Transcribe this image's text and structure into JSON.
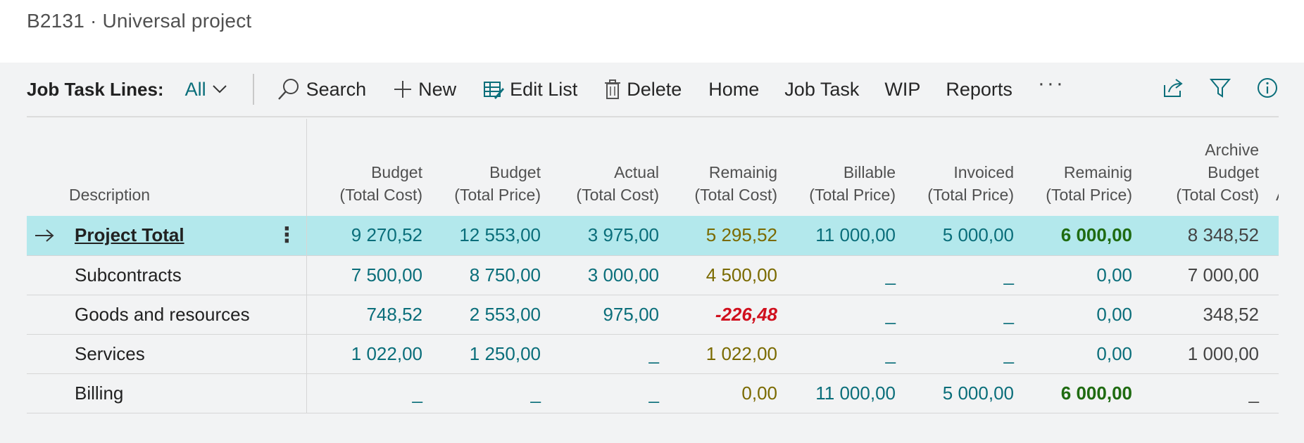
{
  "page": {
    "title": "B2131 · Universal project"
  },
  "toolbar": {
    "lines_label": "Job Task Lines:",
    "view_value": "All",
    "search_label": "Search",
    "new_label": "New",
    "edit_list_label": "Edit List",
    "delete_label": "Delete",
    "home_label": "Home",
    "job_task_label": "Job Task",
    "wip_label": "WIP",
    "reports_label": "Reports",
    "more_label": "···"
  },
  "table": {
    "headers": {
      "description": "Description",
      "budget_cost": [
        "Budget",
        "(Total Cost)"
      ],
      "budget_price": [
        "Budget",
        "(Total Price)"
      ],
      "actual_cost": [
        "Actual",
        "(Total Cost)"
      ],
      "remaining_cost": [
        "Remainig",
        "(Total Cost)"
      ],
      "billable_price": [
        "Billable",
        "(Total Price)"
      ],
      "invoiced_price": [
        "Invoiced",
        "(Total Price)"
      ],
      "remaining_price": [
        "Remainig",
        "(Total Price)"
      ],
      "archive_budget_cost": [
        "Archive",
        "Budget",
        "(Total Cost)"
      ],
      "next_col_partial": "A"
    },
    "rows": [
      {
        "description": "Project Total",
        "budget_cost": "9 270,52",
        "budget_price": "12 553,00",
        "actual_cost": "3 975,00",
        "remaining_cost": "5 295,52",
        "billable_price": "11 000,00",
        "invoiced_price": "5 000,00",
        "remaining_price": "6 000,00",
        "archive_budget_cost": "8 348,52"
      },
      {
        "description": "Subcontracts",
        "budget_cost": "7 500,00",
        "budget_price": "8 750,00",
        "actual_cost": "3 000,00",
        "remaining_cost": "4 500,00",
        "billable_price": "_",
        "invoiced_price": "_",
        "remaining_price": "0,00",
        "archive_budget_cost": "7 000,00"
      },
      {
        "description": "Goods and resources",
        "budget_cost": "748,52",
        "budget_price": "2 553,00",
        "actual_cost": "975,00",
        "remaining_cost": "-226,48",
        "billable_price": "_",
        "invoiced_price": "_",
        "remaining_price": "0,00",
        "archive_budget_cost": "348,52"
      },
      {
        "description": "Services",
        "budget_cost": "1 022,00",
        "budget_price": "1 250,00",
        "actual_cost": "_",
        "remaining_cost": "1 022,00",
        "billable_price": "_",
        "invoiced_price": "_",
        "remaining_price": "0,00",
        "archive_budget_cost": "1 000,00"
      },
      {
        "description": "Billing",
        "budget_cost": "_",
        "budget_price": "_",
        "actual_cost": "_",
        "remaining_cost": "0,00",
        "billable_price": "11 000,00",
        "invoiced_price": "5 000,00",
        "remaining_price": "6 000,00",
        "archive_budget_cost": "_"
      }
    ]
  },
  "colors": {
    "accent": "#0a6e7a",
    "selected_row": "#b3e8ec",
    "negative": "#d0101e",
    "positive_bold": "#1f6b11",
    "remaining_cost": "#7a6a00"
  }
}
